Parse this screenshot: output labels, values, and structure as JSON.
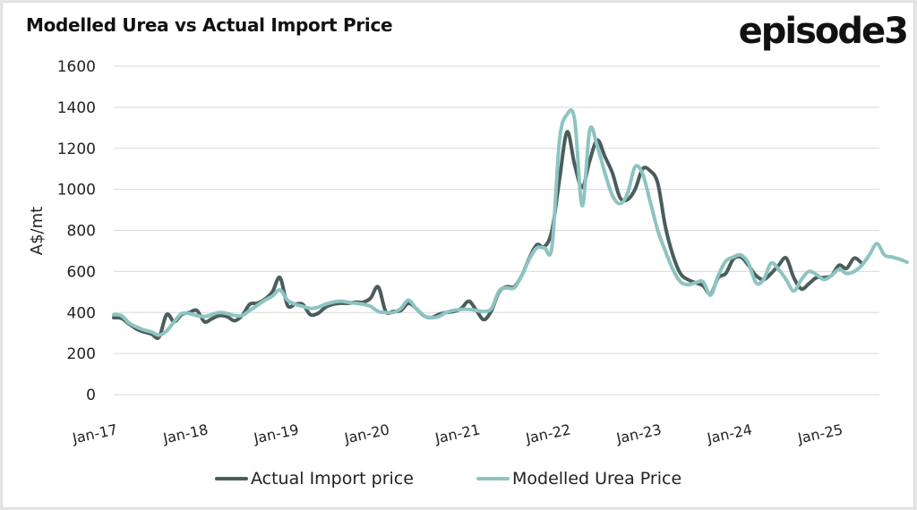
{
  "chart_data": {
    "type": "line",
    "title": "Modelled Urea vs Actual Import Price",
    "xlabel": "",
    "ylabel": "A$/mt",
    "ylim": [
      0,
      1600
    ],
    "yticks": [
      0,
      200,
      400,
      600,
      800,
      1000,
      1200,
      1400,
      1600
    ],
    "ytick_labels": [
      "0",
      "200",
      "400",
      "600",
      "800",
      "1000",
      "1200",
      "1400",
      "1600"
    ],
    "xtick_labels": [
      "Jan-17",
      "Jan-18",
      "Jan-19",
      "Jan-20",
      "Jan-21",
      "Jan-22",
      "Jan-23",
      "Jan-24",
      "Jan-25"
    ],
    "x_start": "Jan-17",
    "x_frequency": "monthly",
    "grid": "horizontal",
    "legend_position": "bottom",
    "series": [
      {
        "name": "Actual Import price",
        "color": "#4a5d5d",
        "values": [
          375,
          372,
          345,
          320,
          305,
          295,
          280,
          390,
          355,
          390,
          400,
          410,
          355,
          370,
          385,
          380,
          360,
          385,
          440,
          445,
          465,
          500,
          570,
          435,
          440,
          440,
          390,
          395,
          425,
          440,
          445,
          445,
          450,
          450,
          470,
          525,
          405,
          405,
          410,
          445,
          420,
          385,
          375,
          390,
          400,
          405,
          420,
          455,
          410,
          365,
          410,
          500,
          525,
          525,
          580,
          665,
          730,
          720,
          800,
          1050,
          1280,
          1120,
          1010,
          1140,
          1240,
          1160,
          1080,
          960,
          950,
          1000,
          1100,
          1090,
          1030,
          820,
          680,
          590,
          560,
          545,
          530,
          490,
          570,
          590,
          660,
          670,
          630,
          580,
          560,
          590,
          630,
          665,
          570,
          515,
          540,
          570,
          570,
          580,
          630,
          615,
          665,
          640
        ]
      },
      {
        "name": "Modelled Urea Price",
        "color": "#8dc4c1",
        "values": [
          390,
          385,
          350,
          330,
          315,
          305,
          290,
          310,
          355,
          395,
          395,
          385,
          380,
          390,
          400,
          395,
          385,
          385,
          410,
          435,
          460,
          480,
          510,
          460,
          440,
          430,
          420,
          425,
          440,
          450,
          455,
          450,
          445,
          440,
          430,
          405,
          400,
          400,
          420,
          460,
          420,
          385,
          375,
          380,
          400,
          410,
          415,
          415,
          410,
          405,
          420,
          505,
          520,
          520,
          580,
          660,
          715,
          715,
          720,
          1240,
          1365,
          1340,
          920,
          1290,
          1210,
          1080,
          970,
          930,
          980,
          1110,
          1075,
          940,
          800,
          700,
          610,
          550,
          535,
          545,
          550,
          485,
          580,
          650,
          670,
          680,
          640,
          545,
          560,
          640,
          610,
          560,
          505,
          560,
          600,
          585,
          560,
          580,
          610,
          590,
          600,
          630,
          680,
          735,
          680,
          670,
          660,
          645
        ]
      }
    ]
  },
  "header": {
    "title": "Modelled Urea vs Actual Import Price",
    "brand": "episode3"
  },
  "legend": {
    "items": [
      {
        "label": "Actual Import price",
        "color": "#4a5d5d"
      },
      {
        "label": "Modelled Urea Price",
        "color": "#8dc4c1"
      }
    ]
  }
}
